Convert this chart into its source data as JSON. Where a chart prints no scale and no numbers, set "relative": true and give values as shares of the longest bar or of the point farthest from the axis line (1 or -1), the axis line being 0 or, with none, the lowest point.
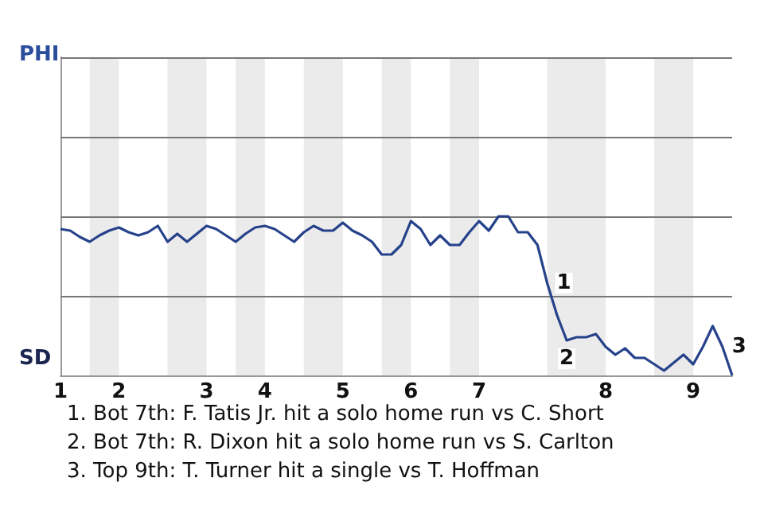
{
  "chart_data": {
    "type": "line",
    "categories": [
      "1",
      null,
      null,
      null,
      null,
      null,
      "2",
      null,
      null,
      null,
      null,
      null,
      null,
      null,
      null,
      "3",
      null,
      null,
      null,
      null,
      null,
      "4",
      null,
      null,
      null,
      null,
      null,
      null,
      null,
      "5",
      null,
      null,
      null,
      null,
      null,
      null,
      "6",
      null,
      null,
      null,
      null,
      null,
      null,
      "7",
      null,
      null,
      null,
      null,
      null,
      null,
      null,
      null,
      null,
      null,
      null,
      null,
      "8",
      null,
      null,
      null,
      null,
      null,
      null,
      null,
      null,
      "9",
      null,
      null,
      null,
      null
    ],
    "relative": true,
    "series": [
      {
        "color": "#26428b",
        "values": [
          0.92,
          0.91,
          0.87,
          0.84,
          0.88,
          0.91,
          0.93,
          0.9,
          0.88,
          0.9,
          0.94,
          0.84,
          0.89,
          0.84,
          0.89,
          0.94,
          0.92,
          0.88,
          0.84,
          0.89,
          0.93,
          0.94,
          0.92,
          0.88,
          0.84,
          0.9,
          0.94,
          0.91,
          0.91,
          0.96,
          0.91,
          0.88,
          0.84,
          0.76,
          0.76,
          0.82,
          0.97,
          0.92,
          0.82,
          0.88,
          0.82,
          0.82,
          0.9,
          0.97,
          0.91,
          1,
          1,
          0.9,
          0.9,
          0.82,
          0.58,
          0.38,
          0.22,
          0.24,
          0.24,
          0.26,
          0.18,
          0.13,
          0.17,
          0.11,
          0.11,
          0.07,
          0.03,
          0.08,
          0.13,
          0.07,
          0.18,
          0.31,
          0.18,
          0
        ]
      }
    ],
    "marker": "none",
    "ref_lines": [
      {
        "axis": "y",
        "value": 0.5,
        "color": "#777777"
      },
      {
        "axis": "y",
        "value": 1,
        "color": "#777777"
      },
      {
        "axis": "y",
        "value": 1.5,
        "color": "#777777"
      },
      {
        "axis": "y",
        "value": 2,
        "color": "#777777"
      }
    ],
    "annotations": [
      "PHI",
      "SD",
      {
        "text": "1",
        "y": 0.58
      },
      {
        "text": "2",
        "y": 0.22
      },
      {
        "text": "3",
        "y": 0.18
      },
      "1. Bot 7th: F. Tatis Jr. hit a solo home run vs C. Short",
      "2. Bot 7th: R. Dixon hit a solo home run vs S. Carlton",
      "3. Top 9th: T. Turner hit a single vs T. Hoffman"
    ]
  }
}
